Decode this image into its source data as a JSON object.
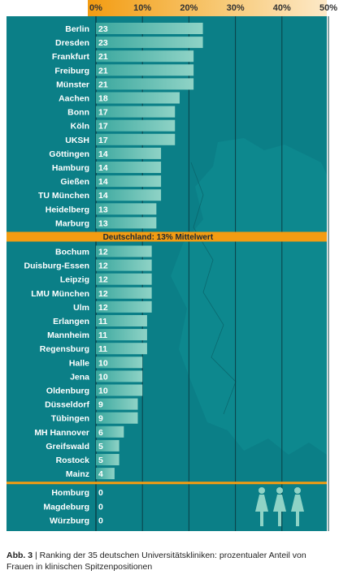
{
  "chart_data": {
    "type": "bar",
    "orientation": "horizontal",
    "x_tick_labels": [
      "0%",
      "10%",
      "20%",
      "30%",
      "40%",
      "50%"
    ],
    "xlim": [
      0,
      50
    ],
    "grid": true,
    "categories": [
      "Berlin",
      "Dresden",
      "Frankfurt",
      "Freiburg",
      "Münster",
      "Aachen",
      "Bonn",
      "Köln",
      "UKSH",
      "Göttingen",
      "Hamburg",
      "Gießen",
      "TU München",
      "Heidelberg",
      "Marburg",
      "Bochum",
      "Duisburg-Essen",
      "Leipzig",
      "LMU München",
      "Ulm",
      "Erlangen",
      "Mannheim",
      "Regensburg",
      "Halle",
      "Jena",
      "Oldenburg",
      "Düsseldorf",
      "Tübingen",
      "MH Hannover",
      "Greifswald",
      "Rostock",
      "Mainz",
      "Homburg",
      "Magdeburg",
      "Würzburg"
    ],
    "values": [
      23,
      23,
      21,
      21,
      21,
      18,
      17,
      17,
      17,
      14,
      14,
      14,
      14,
      13,
      13,
      12,
      12,
      12,
      12,
      12,
      11,
      11,
      11,
      10,
      10,
      10,
      9,
      9,
      6,
      5,
      5,
      4,
      0,
      0,
      0
    ],
    "value_labels": [
      "23",
      "23",
      "21",
      "21",
      "21",
      "18",
      "17",
      "17",
      "17",
      "14",
      "14",
      "14",
      "14",
      "13",
      "13",
      "12",
      "12",
      "12",
      "12",
      "12",
      "11",
      "11",
      "11",
      "10",
      "10",
      "10",
      "9",
      "9",
      "6",
      "5",
      "5",
      "4",
      "0",
      "0",
      "0"
    ],
    "mean_value": 13,
    "mean_label": "Deutschland: 13% Mittelwert",
    "colors": {
      "background": "#0b7f87",
      "background_dark": "#086d74",
      "bar": "#63c1b3",
      "accent": "#f39c12",
      "gridline": "#0a3f46",
      "text": "#ffffff"
    }
  },
  "caption": {
    "label": "Abb. 3",
    "text": " | Ranking der 35 deutschen Universitätskliniken: prozentualer Anteil von Frauen in klinischen Spitzenpositionen"
  },
  "decoration": {
    "icon": "female-figures-icon",
    "count": 3
  }
}
